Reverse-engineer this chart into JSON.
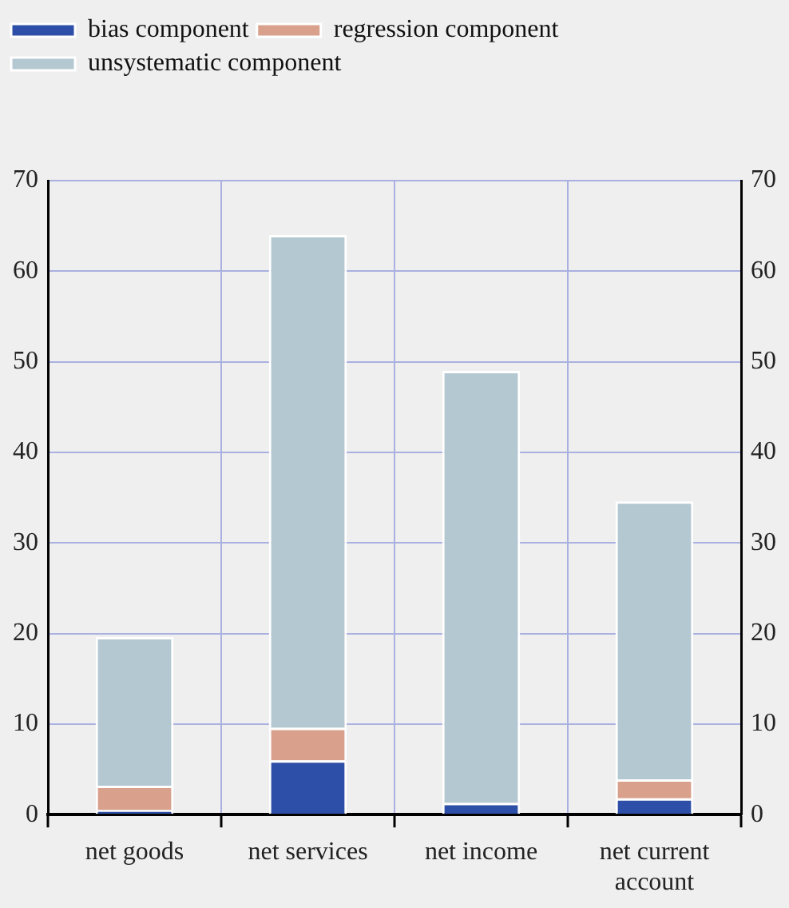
{
  "chart_data": {
    "type": "bar",
    "stacked": true,
    "categories": [
      "net goods",
      "net services",
      "net income",
      "net current account"
    ],
    "series": [
      {
        "name": "bias component",
        "color": "#2e4fa8",
        "values": [
          0.5,
          6.0,
          1.3,
          1.8
        ]
      },
      {
        "name": "regression component",
        "color": "#d9a08c",
        "values": [
          2.7,
          3.6,
          0,
          2.1
        ]
      },
      {
        "name": "unsystematic component",
        "color": "#b4c8d2",
        "values": [
          16.4,
          54.4,
          47.7,
          30.7
        ]
      }
    ],
    "ylim": [
      0,
      70
    ],
    "yticks": [
      0,
      10,
      20,
      30,
      40,
      50,
      60,
      70
    ],
    "y2lim": [
      0,
      70
    ],
    "y2ticks": [
      0,
      10,
      20,
      30,
      40,
      50,
      60,
      70
    ],
    "grid": true,
    "legend": "top left"
  }
}
